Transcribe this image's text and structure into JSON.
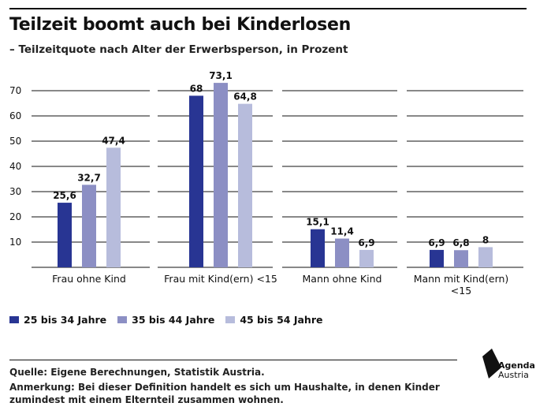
{
  "header": {
    "title": "Teilzeit boomt auch bei Kinderlosen",
    "subtitle": "– Teilzeitquote nach Alter der Erwerbsperson, in Prozent"
  },
  "chart_data": {
    "type": "bar",
    "categories": [
      "Frau ohne Kind",
      "Frau mit Kind(ern) <15",
      "Mann ohne Kind",
      "Mann mit Kind(ern) <15"
    ],
    "series": [
      {
        "name": "25 bis 34 Jahre",
        "values": [
          25.6,
          68,
          15.1,
          6.9
        ],
        "labels": [
          "25,6",
          "68",
          "15,1",
          "6,9"
        ],
        "color": "#283593"
      },
      {
        "name": "35 bis 44 Jahre",
        "values": [
          32.7,
          73.1,
          11.4,
          6.8
        ],
        "labels": [
          "32,7",
          "73,1",
          "11,4",
          "6,8"
        ],
        "color": "#8c8fc4"
      },
      {
        "name": "45 bis 54 Jahre",
        "values": [
          47.4,
          64.8,
          6.9,
          8
        ],
        "labels": [
          "47,4",
          "64,8",
          "6,9",
          "8"
        ],
        "color": "#b7bcdc"
      }
    ],
    "yticks": [
      "10",
      "20",
      "30",
      "40",
      "50",
      "60",
      "70"
    ],
    "ylim": [
      0,
      70
    ],
    "grid": true,
    "legend_position": "bottom-left"
  },
  "footer": {
    "source": "Quelle: Eigene Berechnungen, Statistik Austria.",
    "note": "Anmerkung: Bei dieser Definition handelt es sich um Haushalte, in denen Kinder zumindest mit einem Elternteil zusammen wohnen."
  },
  "logo": {
    "line1": "Agenda",
    "line2": "Austria"
  }
}
